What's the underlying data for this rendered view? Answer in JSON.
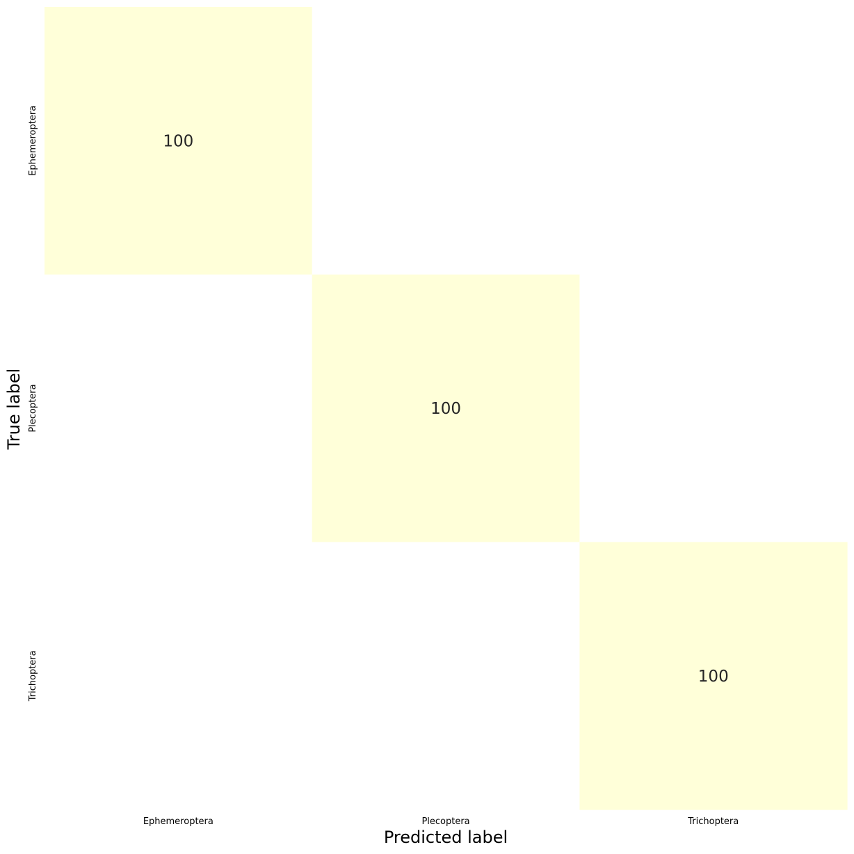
{
  "chart_data": {
    "type": "heatmap",
    "title": "",
    "xlabel": "Predicted label",
    "ylabel": "True label",
    "x_categories": [
      "Ephemeroptera",
      "Plecoptera",
      "Trichoptera"
    ],
    "y_categories": [
      "Ephemeroptera",
      "Plecoptera",
      "Trichoptera"
    ],
    "values": [
      [
        100,
        0,
        0
      ],
      [
        0,
        100,
        0
      ],
      [
        0,
        0,
        100
      ]
    ],
    "show_zero_annotations": false,
    "colors": {
      "high": "#ffffd9",
      "low": "#ffffff",
      "annotation": "#262626"
    },
    "grid": false,
    "colorbar": false
  }
}
